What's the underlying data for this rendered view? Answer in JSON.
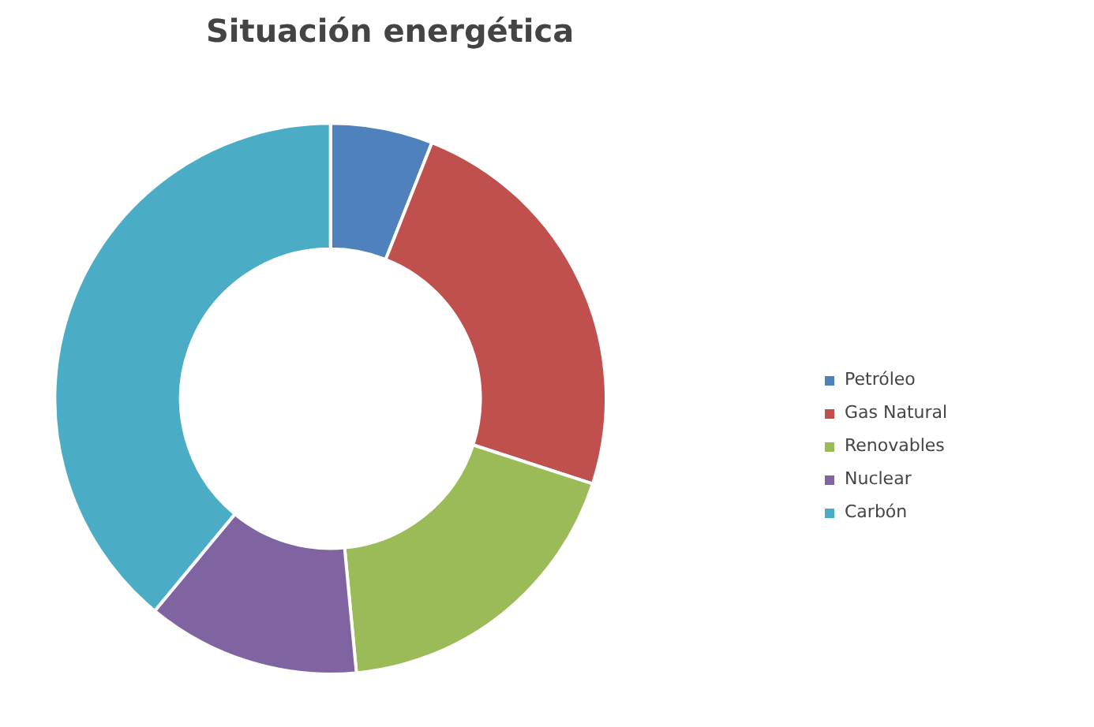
{
  "chart_data": {
    "type": "donut",
    "title": "Situación energética",
    "categories": [
      "Petróleo",
      "Gas Natural",
      "Renovables",
      "Nuclear",
      "Carbón"
    ],
    "values": [
      6,
      24,
      18.5,
      12.5,
      39
    ],
    "colors": [
      "#4f81bd",
      "#c0504d",
      "#9bbb59",
      "#8064a2",
      "#4bacc6"
    ],
    "legend": "right"
  }
}
